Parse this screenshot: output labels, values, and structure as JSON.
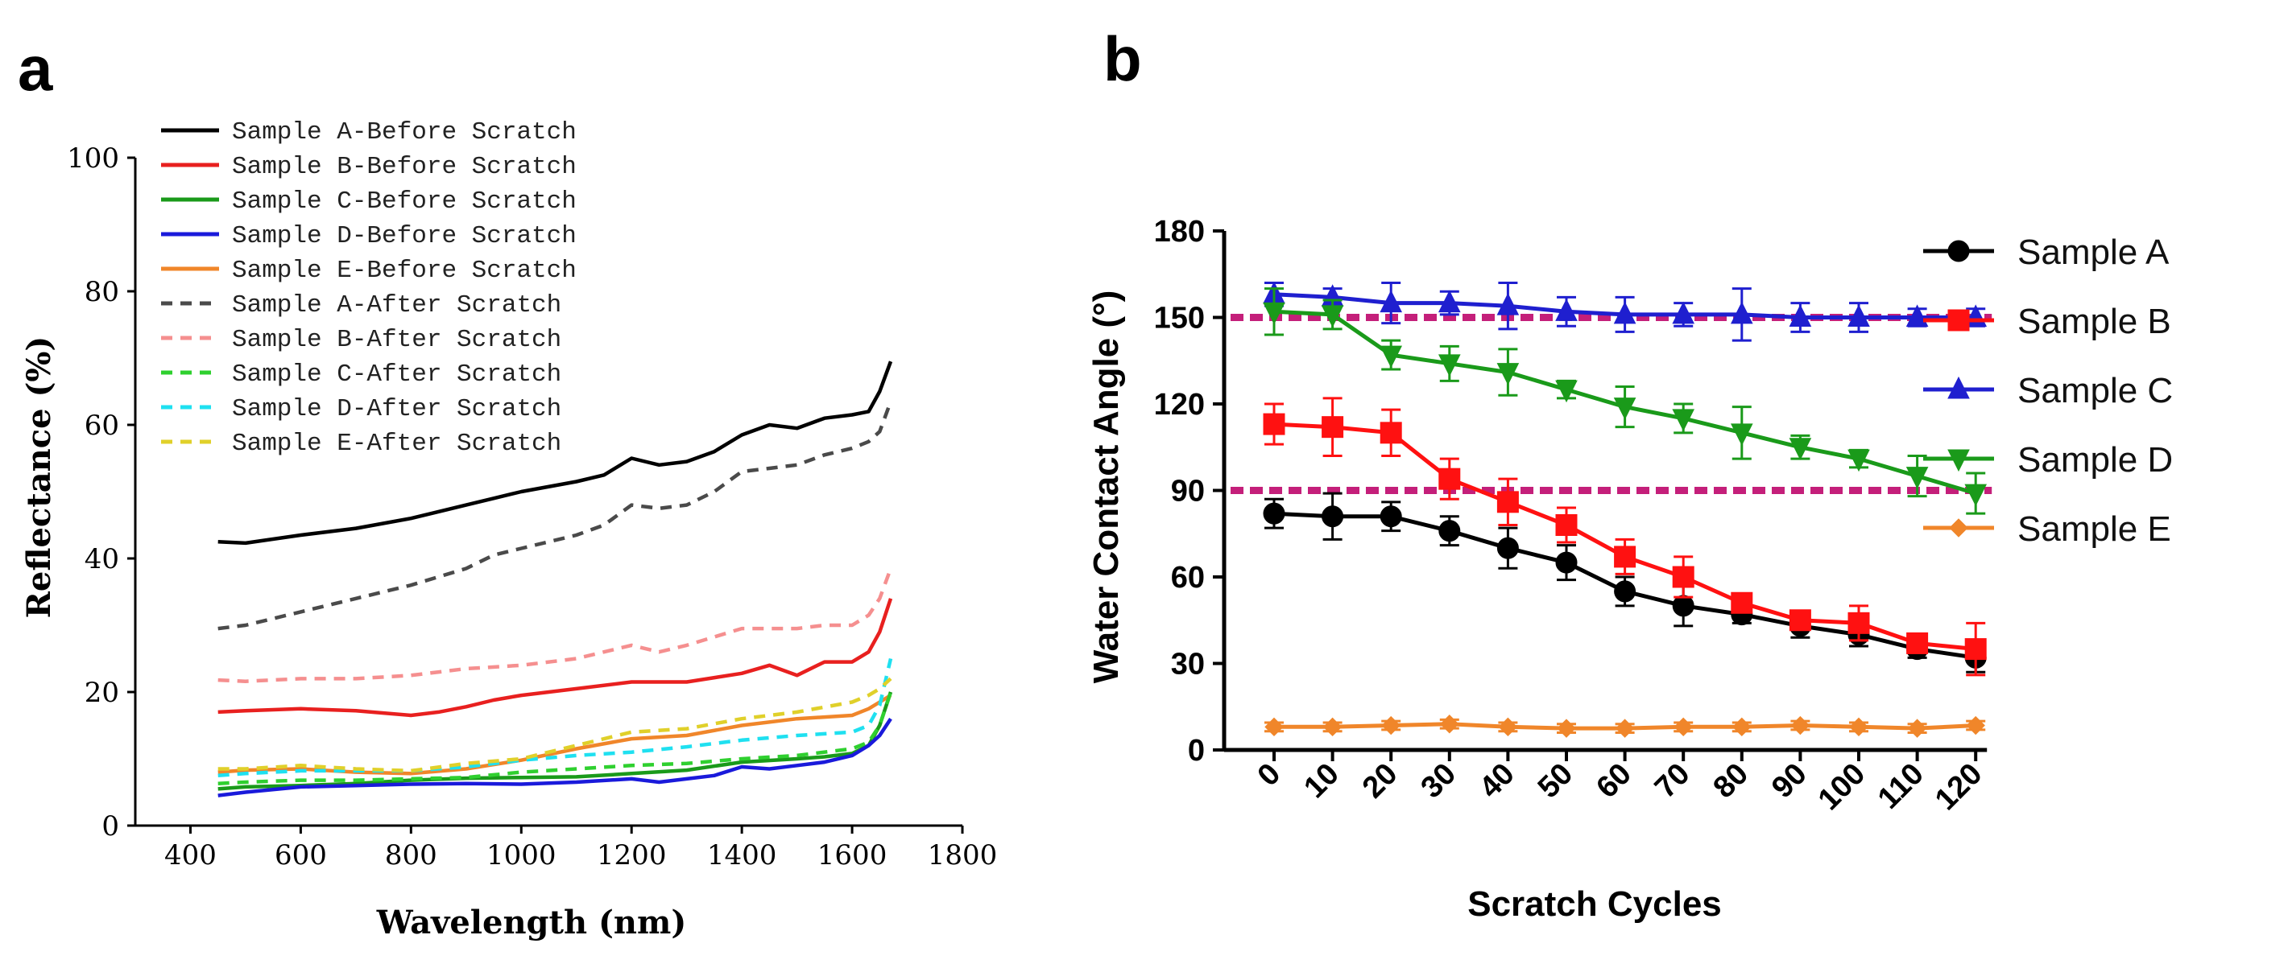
{
  "panel_a_letter": "a",
  "panel_b_letter": "b",
  "chart_data": [
    {
      "type": "line",
      "panel": "a",
      "title": "",
      "xlabel": "Wavelength (nm)",
      "ylabel": "Reflectance (%)",
      "xlim": [
        300,
        1800
      ],
      "ylim": [
        0,
        100
      ],
      "xticks": [
        400,
        600,
        800,
        1000,
        1200,
        1400,
        1600,
        1800
      ],
      "yticks": [
        0,
        20,
        40,
        60,
        80,
        100
      ],
      "legend_position": "top-left",
      "series": [
        {
          "name": "Sample A-Before Scratch",
          "color": "#000000",
          "dash": "solid",
          "x": [
            450,
            500,
            600,
            700,
            800,
            900,
            950,
            1000,
            1100,
            1150,
            1200,
            1250,
            1300,
            1350,
            1400,
            1450,
            1500,
            1550,
            1600,
            1630,
            1650,
            1670
          ],
          "y": [
            42.5,
            42.3,
            43.5,
            44.5,
            46,
            48,
            49,
            50,
            51.5,
            52.5,
            55,
            54,
            54.5,
            56,
            58.5,
            60,
            59.5,
            61,
            61.5,
            62,
            65,
            69.5
          ]
        },
        {
          "name": "Sample B-Before Scratch",
          "color": "#e8201f",
          "dash": "solid",
          "x": [
            450,
            500,
            600,
            700,
            800,
            850,
            900,
            950,
            1000,
            1100,
            1200,
            1300,
            1400,
            1450,
            1500,
            1550,
            1600,
            1630,
            1650,
            1670
          ],
          "y": [
            17,
            17.2,
            17.5,
            17.2,
            16.5,
            17,
            17.8,
            18.8,
            19.5,
            20.5,
            21.5,
            21.5,
            22.8,
            24,
            22.5,
            24.5,
            24.5,
            26,
            29,
            34
          ]
        },
        {
          "name": "Sample C-Before Scratch",
          "color": "#1a9a1a",
          "dash": "solid",
          "x": [
            450,
            500,
            600,
            700,
            800,
            900,
            1000,
            1100,
            1200,
            1300,
            1400,
            1500,
            1550,
            1600,
            1630,
            1650,
            1670
          ],
          "y": [
            5.5,
            5.8,
            6,
            6.3,
            6.8,
            7.1,
            7.2,
            7.3,
            7.8,
            8.3,
            9.5,
            10,
            10.3,
            10.8,
            12,
            15,
            20
          ]
        },
        {
          "name": "Sample D-Before Scratch",
          "color": "#1a1adb",
          "dash": "solid",
          "x": [
            450,
            500,
            600,
            700,
            800,
            900,
            1000,
            1100,
            1200,
            1250,
            1300,
            1350,
            1400,
            1450,
            1500,
            1550,
            1600,
            1630,
            1650,
            1670
          ],
          "y": [
            4.5,
            5,
            5.8,
            6,
            6.2,
            6.3,
            6.2,
            6.5,
            7,
            6.5,
            7,
            7.5,
            8.8,
            8.5,
            9,
            9.5,
            10.5,
            12,
            13.5,
            16
          ]
        },
        {
          "name": "Sample E-Before Scratch",
          "color": "#f0862a",
          "dash": "solid",
          "x": [
            450,
            500,
            600,
            700,
            800,
            900,
            1000,
            1100,
            1200,
            1300,
            1400,
            1500,
            1600,
            1630,
            1650,
            1670
          ],
          "y": [
            8,
            8.3,
            8.5,
            8,
            7.8,
            8.5,
            9.8,
            11.5,
            13,
            13.5,
            15,
            16,
            16.5,
            17.5,
            18.5,
            19.5
          ]
        },
        {
          "name": "Sample A-After Scratch",
          "color": "#4a4a4a",
          "dash": "dashed",
          "x": [
            450,
            500,
            600,
            700,
            800,
            900,
            950,
            1000,
            1100,
            1150,
            1200,
            1250,
            1300,
            1350,
            1400,
            1450,
            1500,
            1550,
            1600,
            1630,
            1650,
            1670
          ],
          "y": [
            29.5,
            30,
            32,
            34,
            36,
            38.5,
            40.5,
            41.5,
            43.5,
            45,
            48,
            47.5,
            48,
            50,
            53,
            53.5,
            54,
            55.5,
            56.5,
            57.5,
            59,
            63.5
          ]
        },
        {
          "name": "Sample B-After Scratch",
          "color": "#f58f8f",
          "dash": "dashed",
          "x": [
            450,
            500,
            600,
            700,
            800,
            900,
            1000,
            1100,
            1200,
            1250,
            1300,
            1400,
            1450,
            1500,
            1550,
            1600,
            1630,
            1650,
            1670
          ],
          "y": [
            21.8,
            21.6,
            22,
            22,
            22.5,
            23.5,
            24,
            25,
            27,
            26,
            27,
            29.5,
            29.5,
            29.5,
            30,
            30,
            31.5,
            34,
            38.5
          ]
        },
        {
          "name": "Sample C-After Scratch",
          "color": "#2fd02f",
          "dash": "dashed",
          "x": [
            450,
            500,
            600,
            700,
            800,
            900,
            1000,
            1100,
            1200,
            1300,
            1400,
            1500,
            1600,
            1630,
            1650,
            1670
          ],
          "y": [
            6.3,
            6.5,
            6.8,
            6.8,
            7,
            7.2,
            8,
            8.5,
            9,
            9.3,
            10,
            10.5,
            11.5,
            12.5,
            15,
            20
          ]
        },
        {
          "name": "Sample D-After Scratch",
          "color": "#1fe0f0",
          "dash": "dashed",
          "x": [
            450,
            500,
            600,
            700,
            800,
            900,
            1000,
            1100,
            1200,
            1300,
            1400,
            1500,
            1600,
            1630,
            1650,
            1670
          ],
          "y": [
            7.5,
            7.8,
            8.2,
            8.2,
            8.2,
            8.8,
            9.8,
            10.5,
            11,
            11.8,
            12.8,
            13.5,
            14,
            15,
            18,
            25
          ]
        },
        {
          "name": "Sample E-After Scratch",
          "color": "#e0d02a",
          "dash": "dashed",
          "x": [
            450,
            500,
            600,
            700,
            800,
            900,
            1000,
            1100,
            1200,
            1300,
            1400,
            1500,
            1600,
            1630,
            1650,
            1670
          ],
          "y": [
            8.5,
            8.5,
            9,
            8.5,
            8.2,
            9.3,
            10,
            12,
            14,
            14.5,
            16,
            17,
            18.5,
            19.5,
            20.5,
            22
          ]
        }
      ]
    },
    {
      "type": "line",
      "panel": "b",
      "title": "",
      "xlabel": "Scratch Cycles",
      "ylabel": "Water Contact Angle (°)",
      "categories": [
        "0",
        "10",
        "20",
        "30",
        "40",
        "50",
        "60",
        "70",
        "80",
        "90",
        "100",
        "110",
        "120"
      ],
      "ylim": [
        0,
        180
      ],
      "yticks": [
        0,
        30,
        60,
        90,
        120,
        150,
        180
      ],
      "legend_position": "right",
      "reference_lines": [
        150,
        90
      ],
      "reference_line_color": "#c41f7a",
      "series": [
        {
          "name": "Sample A",
          "color": "#000000",
          "marker": "circle",
          "values": [
            82,
            81,
            81,
            76,
            70,
            65,
            55,
            50,
            47,
            43,
            40,
            35,
            32
          ],
          "errors": [
            5,
            8,
            5,
            5,
            7,
            6,
            5,
            7,
            3,
            4,
            4,
            3,
            5
          ]
        },
        {
          "name": "Sample B",
          "color": "#ff1111",
          "marker": "square",
          "values": [
            113,
            112,
            110,
            94,
            86,
            78,
            67,
            60,
            51,
            45,
            44,
            37,
            35
          ],
          "errors": [
            7,
            10,
            8,
            7,
            8,
            6,
            6,
            7,
            3,
            3,
            6,
            3,
            9
          ]
        },
        {
          "name": "Sample C",
          "color": "#1f1fcf",
          "marker": "triangle-up",
          "values": [
            158,
            157,
            155,
            155,
            154,
            152,
            151,
            151,
            151,
            150,
            150,
            150,
            150
          ],
          "errors": [
            4,
            3,
            7,
            4,
            8,
            5,
            6,
            4,
            9,
            5,
            5,
            3,
            3
          ]
        },
        {
          "name": "Sample D",
          "color": "#1a9a1a",
          "marker": "triangle-down",
          "values": [
            152,
            151,
            137,
            134,
            131,
            125,
            119,
            115,
            110,
            105,
            101,
            95,
            89
          ],
          "errors": [
            8,
            5,
            5,
            6,
            8,
            3,
            7,
            5,
            9,
            4,
            3,
            7,
            7
          ]
        },
        {
          "name": "Sample E",
          "color": "#f0862a",
          "marker": "diamond",
          "values": [
            8,
            8,
            8.5,
            9,
            8,
            7.5,
            7.5,
            8,
            8,
            8.5,
            8,
            7.5,
            8.5
          ],
          "errors": [
            1.5,
            1.5,
            1.5,
            1.5,
            1.5,
            1.5,
            1.5,
            1.5,
            1.5,
            1.5,
            1.5,
            1.5,
            1.5
          ]
        }
      ]
    }
  ]
}
